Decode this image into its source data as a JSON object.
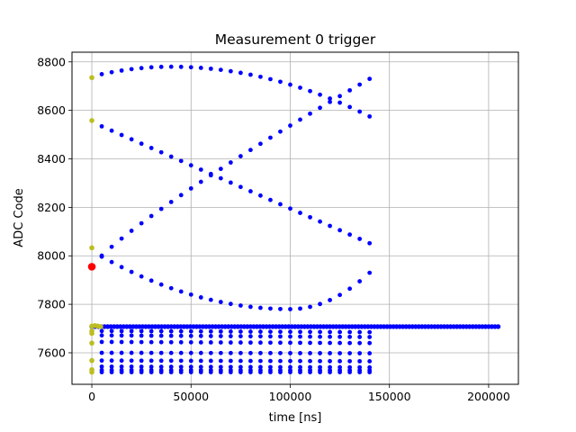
{
  "chart_data": {
    "type": "scatter",
    "title": "Measurement 0 trigger",
    "xlabel": "time [ns]",
    "ylabel": "ADC Code",
    "xlim": [
      -10000,
      215000
    ],
    "ylim": [
      7470,
      8840
    ],
    "xticks": [
      0,
      50000,
      100000,
      150000,
      200000
    ],
    "xtick_labels": [
      "0",
      "50000",
      "100000",
      "150000",
      "200000"
    ],
    "yticks": [
      7600,
      7800,
      8000,
      8200,
      8400,
      8600,
      8800
    ],
    "ytick_labels": [
      "7600",
      "7800",
      "8000",
      "8200",
      "8400",
      "8600",
      "8800"
    ],
    "grid": true,
    "colors": {
      "main": "#0000ff",
      "start": "#bcbd22",
      "trigger": "#ff0000"
    },
    "baseline": {
      "y": 7708,
      "x_start": 0,
      "x_end": 204800
    },
    "curve_x_end": 140000,
    "curve_step": 5000,
    "curves": [
      {
        "shape": "arch",
        "y0": 8740,
        "peak": 8780,
        "peak_x": 40000,
        "y_end": 8575
      },
      {
        "shape": "linear",
        "y0": 8552,
        "y_end": 8052
      },
      {
        "shape": "rising",
        "y0": 7955,
        "y_end": 8730
      },
      {
        "shape": "dip",
        "y0": 8020,
        "dip": 7780,
        "dip_x": 100000,
        "y_end": 7930
      },
      {
        "shape": "linear",
        "y0": 7690,
        "y_end": 7685
      },
      {
        "shape": "linear",
        "y0": 7672,
        "y_end": 7665
      },
      {
        "shape": "linear",
        "y0": 7645,
        "y_end": 7640
      },
      {
        "shape": "linear",
        "y0": 7600,
        "y_end": 7598
      },
      {
        "shape": "linear",
        "y0": 7568,
        "y_end": 7565
      },
      {
        "shape": "linear",
        "y0": 7543,
        "y_end": 7540
      },
      {
        "shape": "linear",
        "y0": 7528,
        "y_end": 7528
      },
      {
        "shape": "linear",
        "y0": 7520,
        "y_end": 7520
      }
    ],
    "start_points": [
      {
        "x": 0,
        "y": 8735
      },
      {
        "x": 0,
        "y": 8558
      },
      {
        "x": 0,
        "y": 8033
      },
      {
        "x": 0,
        "y": 7710
      },
      {
        "x": 1500,
        "y": 7712
      },
      {
        "x": 3000,
        "y": 7710
      },
      {
        "x": 4500,
        "y": 7708
      },
      {
        "x": 0,
        "y": 7690
      },
      {
        "x": 0,
        "y": 7680
      },
      {
        "x": 0,
        "y": 7640
      },
      {
        "x": 0,
        "y": 7568
      },
      {
        "x": 0,
        "y": 7530
      },
      {
        "x": 0,
        "y": 7520
      }
    ],
    "trigger_point": {
      "x": 0,
      "y": 7955
    }
  }
}
